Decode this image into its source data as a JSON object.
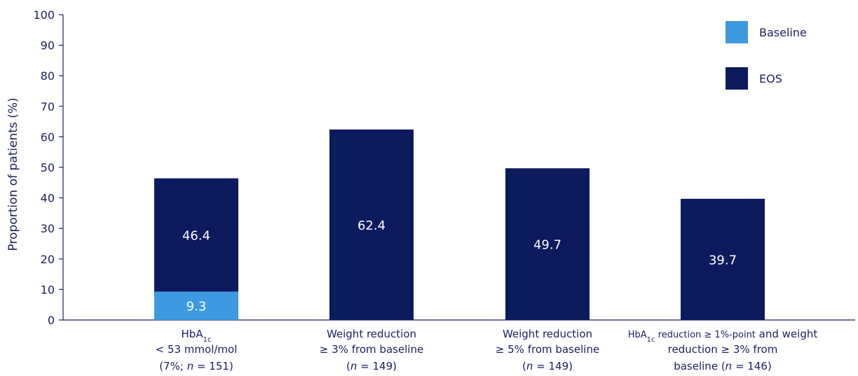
{
  "chart_data": {
    "type": "bar",
    "stacked": true,
    "ylabel": "Proportion of patients (%)",
    "ylim": [
      0,
      100
    ],
    "yticks": [
      0,
      10,
      20,
      30,
      40,
      50,
      60,
      70,
      80,
      90,
      100
    ],
    "grid": false,
    "legend_position": "top-right",
    "categories": [
      "HbA1c < 53 mmol/mol (7%; n = 151)",
      "Weight reduction ≥ 3% from baseline (n = 149)",
      "Weight reduction ≥ 5% from baseline (n = 149)",
      "HbA1c reduction ≥ 1%-point and weight reduction ≥ 3% from baseline (n = 146)"
    ],
    "series": [
      {
        "name": "Baseline",
        "color": "#3d9ae0",
        "values": [
          9.3,
          null,
          null,
          null
        ]
      },
      {
        "name": "EOS",
        "color": "#0c1a5e",
        "values": [
          46.4,
          62.4,
          49.7,
          39.7
        ]
      }
    ],
    "data_labels": [
      {
        "category_index": 0,
        "series": "Baseline",
        "text": "9.3"
      },
      {
        "category_index": 0,
        "series": "EOS",
        "text": "46.4"
      },
      {
        "category_index": 1,
        "series": "EOS",
        "text": "62.4"
      },
      {
        "category_index": 2,
        "series": "EOS",
        "text": "49.7"
      },
      {
        "category_index": 3,
        "series": "EOS",
        "text": "39.7"
      }
    ],
    "category_label_lines": [
      [
        {
          "parts": [
            {
              "t": "HbA"
            },
            {
              "t": "1c",
              "sub": true
            }
          ]
        },
        {
          "parts": [
            {
              "t": "< 53 mmol/mol"
            }
          ]
        },
        {
          "parts": [
            {
              "t": "(7%; "
            },
            {
              "t": "n",
              "italic": true
            },
            {
              "t": " = 151)"
            }
          ]
        }
      ],
      [
        {
          "parts": [
            {
              "t": "Weight reduction"
            }
          ]
        },
        {
          "parts": [
            {
              "t": "≥ 3% from baseline"
            }
          ]
        },
        {
          "parts": [
            {
              "t": "("
            },
            {
              "t": "n",
              "italic": true
            },
            {
              "t": " = 149)"
            }
          ]
        }
      ],
      [
        {
          "parts": [
            {
              "t": "Weight reduction"
            }
          ]
        },
        {
          "parts": [
            {
              "t": "≥ 5% from baseline"
            }
          ]
        },
        {
          "parts": [
            {
              "t": "("
            },
            {
              "t": "n",
              "italic": true
            },
            {
              "t": " = 149)"
            }
          ]
        }
      ],
      [
        {
          "small_first": true,
          "parts": [
            {
              "t": "HbA"
            },
            {
              "t": "1c",
              "sub": true
            },
            {
              "t": " reduction ≥ 1%-point",
              "small": true
            },
            {
              "t": " and weight"
            }
          ]
        },
        {
          "parts": [
            {
              "t": "reduction ≥ 3% from"
            }
          ]
        },
        {
          "parts": [
            {
              "t": "baseline ("
            },
            {
              "t": "n",
              "italic": true
            },
            {
              "t": " = 146)"
            }
          ]
        }
      ]
    ]
  }
}
